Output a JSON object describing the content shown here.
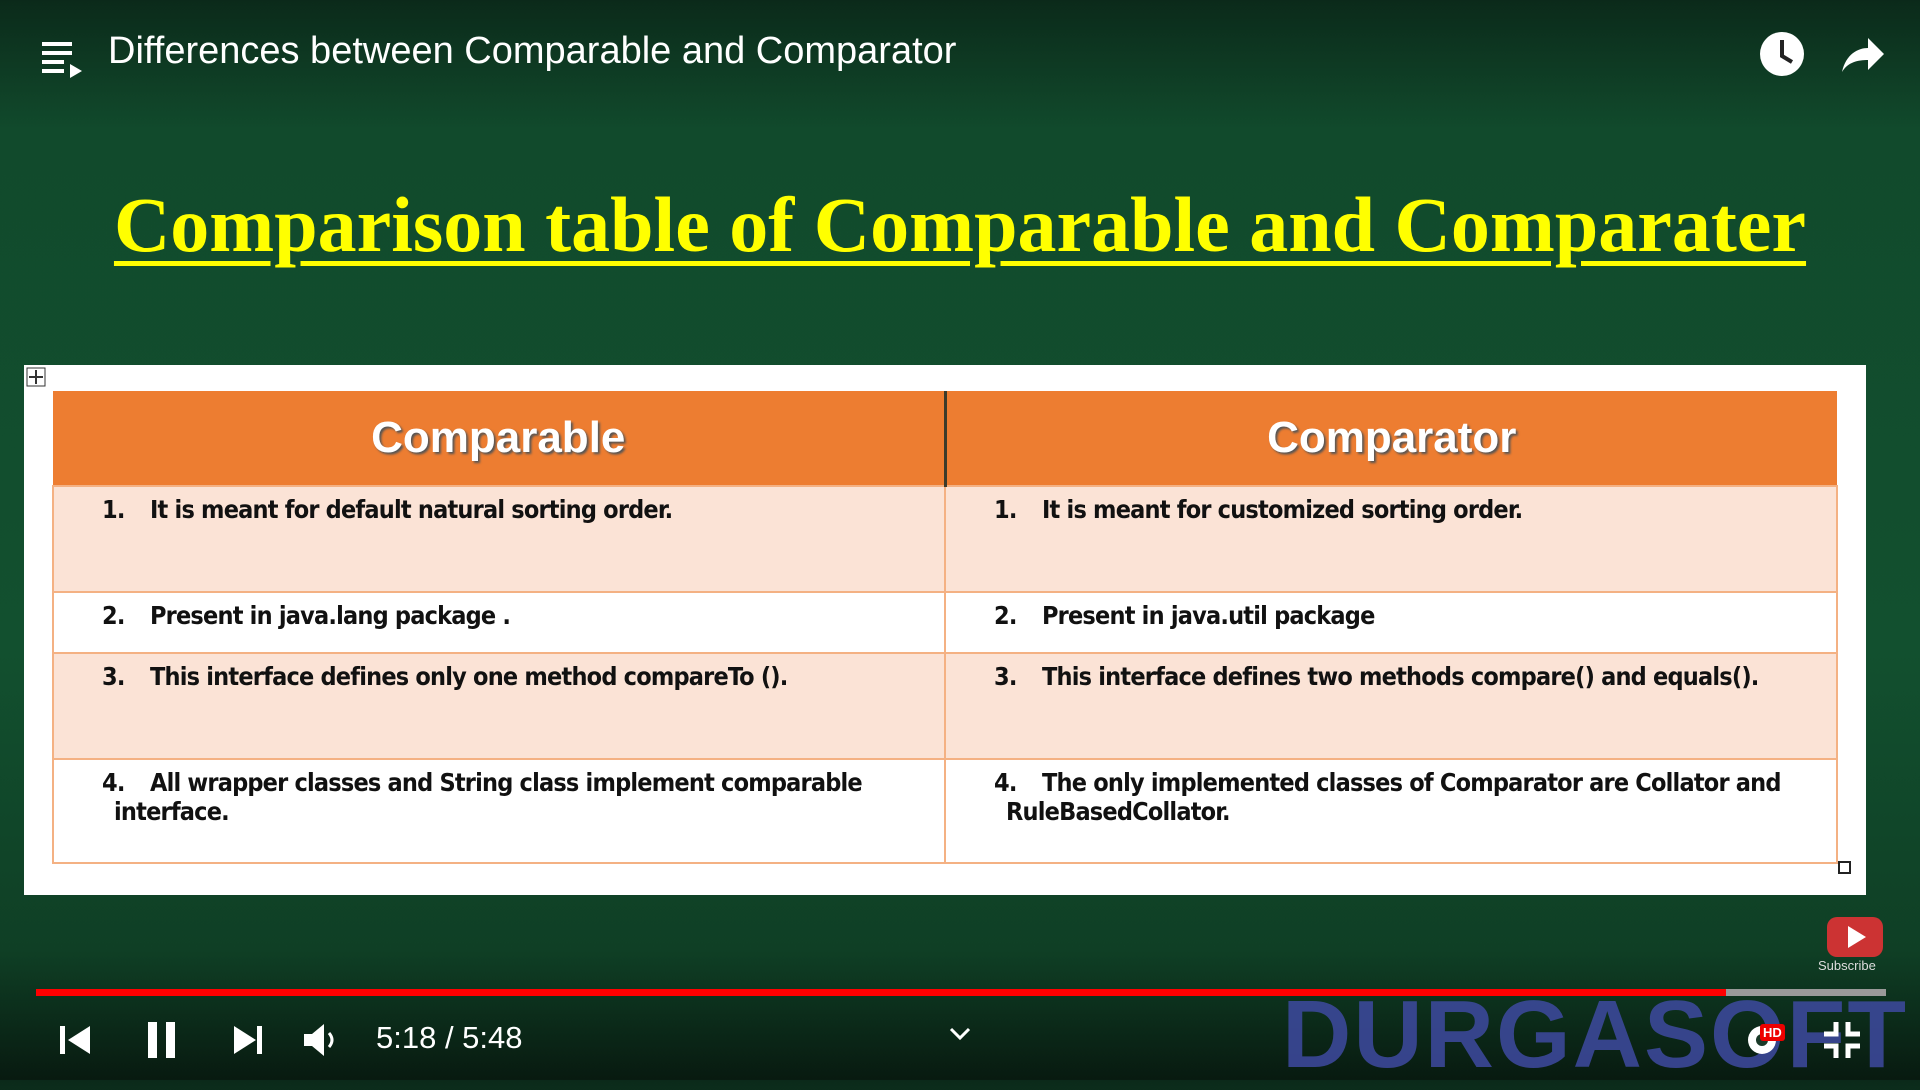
{
  "player": {
    "video_title": "Differences between Comparable and Comparator",
    "time": "5:18 / 5:48",
    "subscribe": "Subscribe",
    "hd_badge": "HD",
    "watermark": "DURGASOFT"
  },
  "slide": {
    "title": "Comparison table of Comparable and Comparater",
    "table": {
      "headers": [
        "Comparable",
        "Comparator"
      ],
      "rows": [
        [
          {
            "number": "1.",
            "text": "It is meant for default natural sorting order."
          },
          {
            "number": "1.",
            "text": "It is meant for customized sorting order."
          }
        ],
        [
          {
            "number": "2.",
            "text": "Present in java.lang package ."
          },
          {
            "number": "2.",
            "text": "Present in java.util package"
          }
        ],
        [
          {
            "number": "3.",
            "text": "This interface defines only one method compareTo ()."
          },
          {
            "number": "3.",
            "text": "This interface defines two methods compare() and equals()."
          }
        ],
        [
          {
            "number": "4.",
            "text": "All wrapper classes and String class implement comparable interface."
          },
          {
            "number": "4.",
            "text": "The only implemented classes of Comparator are Collator and RuleBasedCollator."
          }
        ]
      ]
    }
  }
}
